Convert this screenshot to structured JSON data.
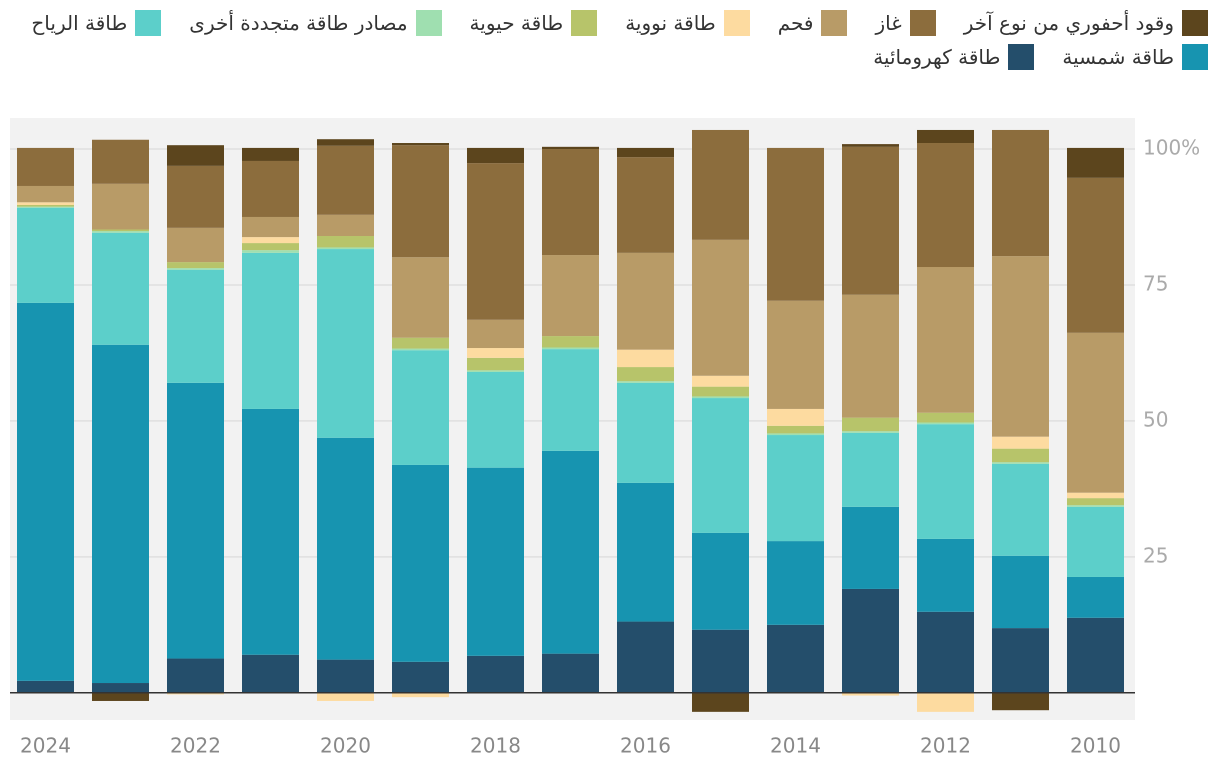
{
  "chart_data": {
    "type": "bar",
    "stacked": true,
    "grid": true,
    "categories": [
      "2024",
      null,
      "2022",
      null,
      "2020",
      null,
      "2018",
      null,
      "2016",
      null,
      "2014",
      null,
      "2012",
      null,
      "2010"
    ],
    "ylim": [
      -5,
      105.7
    ],
    "yticks": [
      25,
      50,
      75,
      {
        "value": 100,
        "label": "100%"
      }
    ],
    "series": [
      {
        "name": "طاقة كهرومائية",
        "color": "#244e6b",
        "values": [
          2.2,
          1.8,
          6.3,
          7,
          6.1,
          5.7,
          6.8,
          7.2,
          13.1,
          11.6,
          12.5,
          19.1,
          14.9,
          11.9,
          13.8
        ]
      },
      {
        "name": "طاقة شمسية",
        "color": "#1794b0",
        "values": [
          69.5,
          62.2,
          50.7,
          45.2,
          40.8,
          36.2,
          34.6,
          37.3,
          25.5,
          17.8,
          15.4,
          15.1,
          13.4,
          13.3,
          7.5
        ]
      },
      {
        "name": "طاقة الرياح",
        "color": "#5ccfca",
        "values": [
          17.5,
          20.6,
          20.8,
          28.7,
          34.7,
          21.1,
          17.6,
          18.7,
          18.4,
          24.8,
          19.5,
          13.6,
          21.1,
          16.9,
          12.9
        ]
      },
      {
        "name": "مصادر طاقة متجددة أخرى",
        "color": "#9fdfb0",
        "values": [
          0.2,
          0.3,
          0.3,
          0.5,
          0.3,
          0.3,
          0.3,
          0.3,
          0.3,
          0.3,
          0.3,
          0.3,
          0.3,
          0.3,
          0.3
        ]
      },
      {
        "name": "طاقة حيوية",
        "color": "#b7c46a",
        "values": [
          0.3,
          0.3,
          1.1,
          1.3,
          2.1,
          2,
          2.3,
          2.1,
          2.6,
          1.8,
          1.4,
          2.5,
          1.8,
          2.5,
          1.3
        ]
      },
      {
        "name": "طاقة نووية",
        "color": "#fddba0",
        "values": [
          0.5,
          0,
          -0.3,
          1.1,
          -1.5,
          -0.8,
          1.8,
          0,
          3.2,
          2,
          3.1,
          -0.5,
          -3.5,
          2.2,
          1
        ]
      },
      {
        "name": "فحم",
        "color": "#b89b67",
        "values": [
          3,
          8.4,
          6.3,
          3.7,
          3.9,
          14.8,
          5.2,
          14.9,
          17.8,
          25,
          19.9,
          22.6,
          26.8,
          33.2,
          29.4
        ]
      },
      {
        "name": "غاز",
        "color": "#8c6d3d",
        "values": [
          7,
          8.1,
          11.4,
          10.3,
          12.7,
          20.6,
          28.8,
          19.5,
          17.6,
          20.2,
          28.1,
          27.2,
          22.8,
          23.2,
          28.5
        ]
      },
      {
        "name": "وقود أحفوري من نوع آخر",
        "color": "#5c451d",
        "values": [
          0,
          -1.5,
          3.8,
          2.4,
          1.2,
          0.4,
          2.8,
          0.4,
          1.7,
          -3.5,
          0,
          0.5,
          2.4,
          -3.2,
          5.5
        ]
      }
    ]
  }
}
